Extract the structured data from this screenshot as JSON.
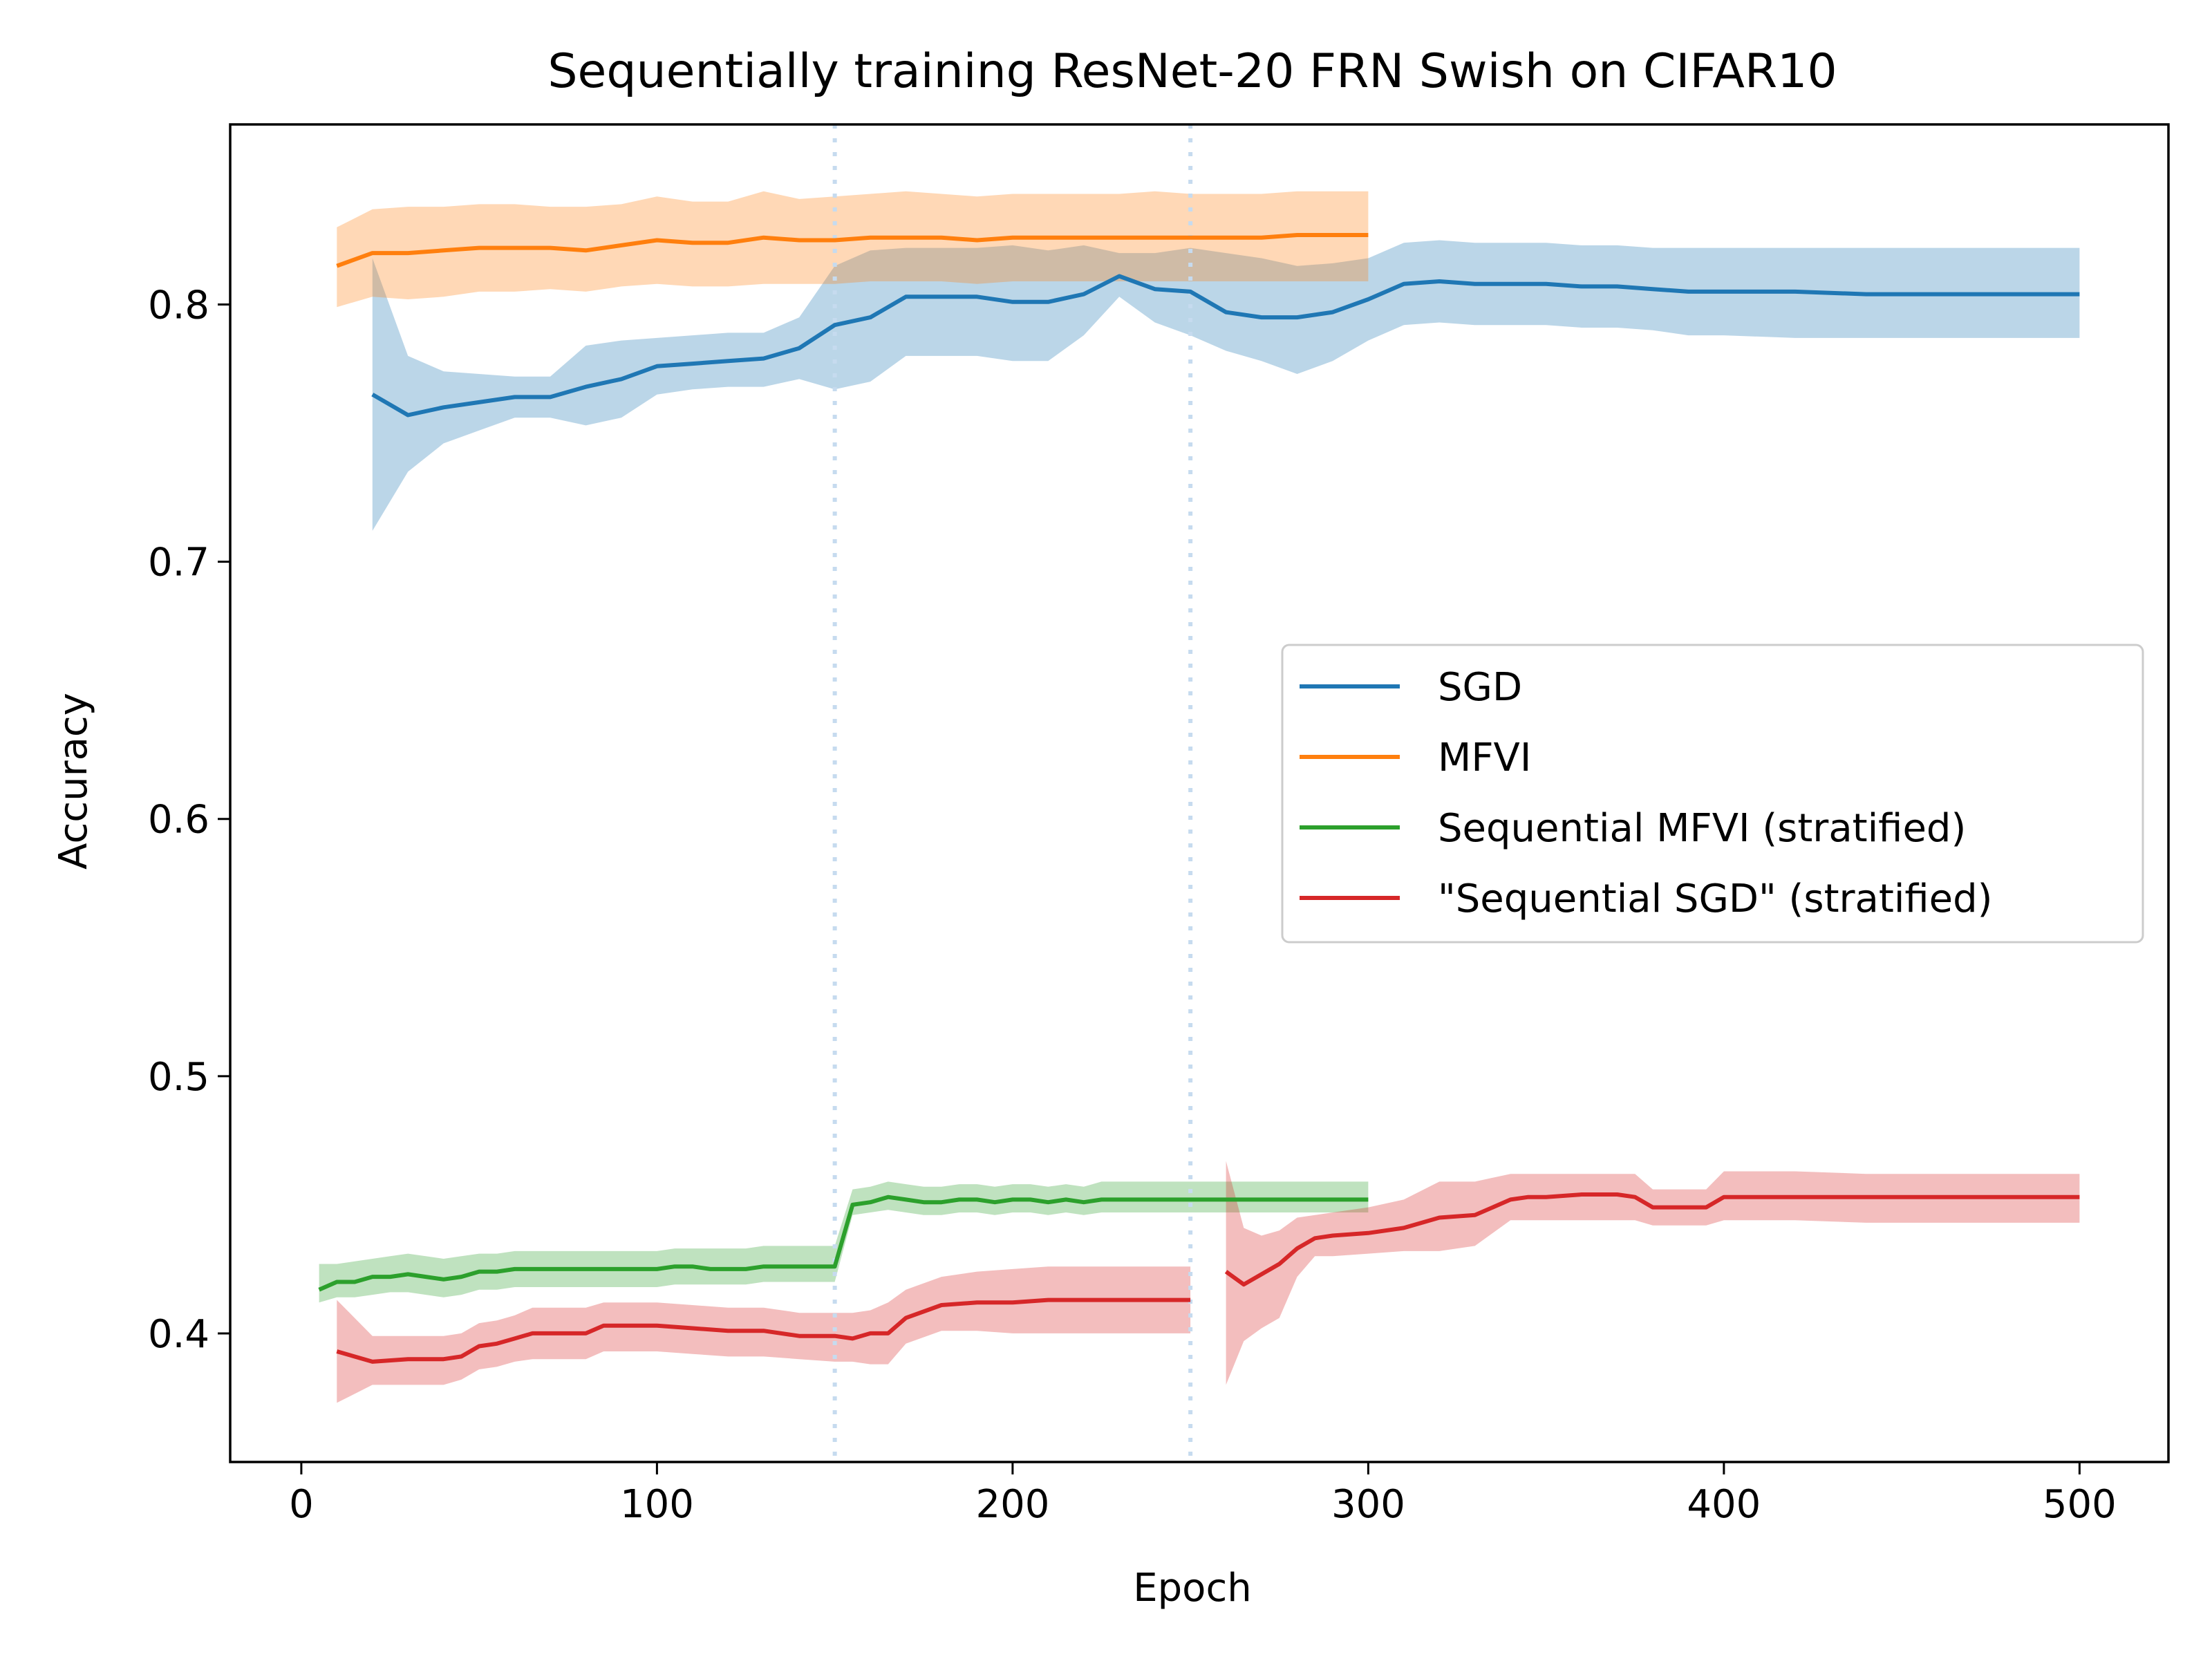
{
  "chart_data": {
    "type": "line",
    "title": "Sequentially training ResNet-20 FRN Swish on CIFAR10",
    "xlabel": "Epoch",
    "ylabel": "Accuracy",
    "xlim": [
      -20,
      525
    ],
    "ylim": [
      0.35,
      0.87
    ],
    "xticks": [
      0,
      100,
      200,
      300,
      400,
      500
    ],
    "xtick_labels": [
      "0",
      "100",
      "200",
      "300",
      "400",
      "500"
    ],
    "yticks": [
      0.4,
      0.5,
      0.6,
      0.7,
      0.8
    ],
    "ytick_labels": [
      "0.4",
      "0.5",
      "0.6",
      "0.7",
      "0.8"
    ],
    "grid": false,
    "legend_position": "center-right",
    "vlines": [
      150,
      250
    ],
    "vline_color": "#c6dbef",
    "series": [
      {
        "name": "SGD",
        "color": "#1f77b4",
        "segments": [
          {
            "x": [
              20,
              30,
              40,
              50,
              60,
              70,
              80,
              90,
              100,
              110,
              120,
              130,
              140,
              150,
              160,
              170,
              180,
              190,
              200,
              210,
              220,
              230,
              240,
              250,
              260,
              270,
              280,
              290,
              300,
              310,
              320,
              330,
              340,
              350,
              360,
              370,
              380,
              390,
              400,
              420,
              440,
              460,
              480,
              500
            ],
            "y": [
              0.765,
              0.757,
              0.76,
              0.762,
              0.764,
              0.764,
              0.768,
              0.771,
              0.776,
              0.777,
              0.778,
              0.779,
              0.783,
              0.792,
              0.795,
              0.803,
              0.803,
              0.803,
              0.801,
              0.801,
              0.804,
              0.811,
              0.806,
              0.805,
              0.797,
              0.795,
              0.795,
              0.797,
              0.802,
              0.808,
              0.809,
              0.808,
              0.808,
              0.808,
              0.807,
              0.807,
              0.806,
              0.805,
              0.805,
              0.805,
              0.804,
              0.804,
              0.804,
              0.804
            ],
            "upper": [
              0.818,
              0.78,
              0.774,
              0.773,
              0.772,
              0.772,
              0.784,
              0.786,
              0.787,
              0.788,
              0.789,
              0.789,
              0.795,
              0.815,
              0.821,
              0.822,
              0.822,
              0.822,
              0.823,
              0.821,
              0.823,
              0.82,
              0.82,
              0.822,
              0.82,
              0.818,
              0.815,
              0.816,
              0.818,
              0.824,
              0.825,
              0.824,
              0.824,
              0.824,
              0.823,
              0.823,
              0.822,
              0.822,
              0.822,
              0.822,
              0.822,
              0.822,
              0.822,
              0.822
            ],
            "lower": [
              0.712,
              0.735,
              0.746,
              0.751,
              0.756,
              0.756,
              0.753,
              0.756,
              0.765,
              0.767,
              0.768,
              0.768,
              0.771,
              0.767,
              0.77,
              0.78,
              0.78,
              0.78,
              0.778,
              0.778,
              0.788,
              0.803,
              0.793,
              0.788,
              0.782,
              0.778,
              0.773,
              0.778,
              0.786,
              0.792,
              0.793,
              0.792,
              0.792,
              0.792,
              0.791,
              0.791,
              0.79,
              0.788,
              0.788,
              0.787,
              0.787,
              0.787,
              0.787,
              0.787
            ]
          }
        ]
      },
      {
        "name": "MFVI",
        "color": "#ff7f0e",
        "segments": [
          {
            "x": [
              10,
              20,
              30,
              40,
              50,
              60,
              70,
              80,
              90,
              100,
              110,
              120,
              130,
              140,
              150,
              160,
              170,
              180,
              190,
              200,
              210,
              220,
              230,
              240,
              250,
              260,
              270,
              280,
              290,
              300
            ],
            "y": [
              0.815,
              0.82,
              0.82,
              0.821,
              0.822,
              0.822,
              0.822,
              0.821,
              0.823,
              0.825,
              0.824,
              0.824,
              0.826,
              0.825,
              0.825,
              0.826,
              0.826,
              0.826,
              0.825,
              0.826,
              0.826,
              0.826,
              0.826,
              0.826,
              0.826,
              0.826,
              0.826,
              0.827,
              0.827,
              0.827
            ],
            "upper": [
              0.83,
              0.837,
              0.838,
              0.838,
              0.839,
              0.839,
              0.838,
              0.838,
              0.839,
              0.842,
              0.84,
              0.84,
              0.844,
              0.841,
              0.842,
              0.843,
              0.844,
              0.843,
              0.842,
              0.843,
              0.843,
              0.843,
              0.843,
              0.844,
              0.843,
              0.843,
              0.843,
              0.844,
              0.844,
              0.844
            ],
            "lower": [
              0.799,
              0.803,
              0.802,
              0.803,
              0.805,
              0.805,
              0.806,
              0.805,
              0.807,
              0.808,
              0.807,
              0.807,
              0.808,
              0.808,
              0.808,
              0.809,
              0.809,
              0.809,
              0.808,
              0.809,
              0.809,
              0.809,
              0.809,
              0.809,
              0.809,
              0.809,
              0.809,
              0.809,
              0.809,
              0.809
            ]
          }
        ]
      },
      {
        "name": "Sequential MFVI (stratified)",
        "color": "#2ca02c",
        "segments": [
          {
            "x": [
              5,
              10,
              15,
              20,
              25,
              30,
              35,
              40,
              45,
              50,
              55,
              60,
              65,
              70,
              75,
              80,
              85,
              90,
              95,
              100,
              105,
              110,
              115,
              120,
              125,
              130,
              135,
              140,
              145,
              150,
              155,
              160,
              165,
              170,
              175,
              180,
              185,
              190,
              195,
              200,
              205,
              210,
              215,
              220,
              225,
              230,
              235,
              240,
              245,
              250,
              255,
              260,
              265,
              270,
              275,
              280,
              285,
              290,
              295,
              300
            ],
            "y": [
              0.417,
              0.42,
              0.42,
              0.422,
              0.422,
              0.423,
              0.422,
              0.421,
              0.422,
              0.424,
              0.424,
              0.425,
              0.425,
              0.425,
              0.425,
              0.425,
              0.425,
              0.425,
              0.425,
              0.425,
              0.426,
              0.426,
              0.425,
              0.425,
              0.425,
              0.426,
              0.426,
              0.426,
              0.426,
              0.426,
              0.45,
              0.451,
              0.453,
              0.452,
              0.451,
              0.451,
              0.452,
              0.452,
              0.451,
              0.452,
              0.452,
              0.451,
              0.452,
              0.451,
              0.452,
              0.452,
              0.452,
              0.452,
              0.452,
              0.452,
              0.452,
              0.452,
              0.452,
              0.452,
              0.452,
              0.452,
              0.452,
              0.452,
              0.452,
              0.452
            ],
            "upper": [
              0.427,
              0.427,
              0.428,
              0.429,
              0.43,
              0.431,
              0.43,
              0.429,
              0.43,
              0.431,
              0.431,
              0.432,
              0.432,
              0.432,
              0.432,
              0.432,
              0.432,
              0.432,
              0.432,
              0.432,
              0.433,
              0.433,
              0.433,
              0.433,
              0.433,
              0.434,
              0.434,
              0.434,
              0.434,
              0.434,
              0.456,
              0.457,
              0.459,
              0.458,
              0.457,
              0.457,
              0.458,
              0.458,
              0.457,
              0.458,
              0.458,
              0.457,
              0.458,
              0.457,
              0.459,
              0.459,
              0.459,
              0.459,
              0.459,
              0.459,
              0.459,
              0.459,
              0.459,
              0.459,
              0.459,
              0.459,
              0.459,
              0.459,
              0.459,
              0.459
            ],
            "lower": [
              0.412,
              0.414,
              0.414,
              0.415,
              0.416,
              0.416,
              0.415,
              0.414,
              0.415,
              0.417,
              0.417,
              0.418,
              0.418,
              0.418,
              0.418,
              0.418,
              0.418,
              0.418,
              0.418,
              0.418,
              0.419,
              0.419,
              0.419,
              0.419,
              0.419,
              0.42,
              0.42,
              0.42,
              0.42,
              0.42,
              0.446,
              0.447,
              0.448,
              0.447,
              0.446,
              0.446,
              0.447,
              0.447,
              0.446,
              0.447,
              0.447,
              0.446,
              0.447,
              0.446,
              0.447,
              0.447,
              0.447,
              0.447,
              0.447,
              0.447,
              0.447,
              0.447,
              0.447,
              0.447,
              0.447,
              0.447,
              0.447,
              0.447,
              0.447,
              0.447
            ]
          }
        ]
      },
      {
        "name": "\"Sequential SGD\" (stratified)",
        "color": "#d62728",
        "segments": [
          {
            "x": [
              10,
              20,
              30,
              40,
              45,
              50,
              55,
              60,
              65,
              70,
              75,
              80,
              85,
              90,
              95,
              100,
              110,
              120,
              130,
              140,
              150,
              155,
              160,
              165,
              170,
              180,
              190,
              200,
              210,
              220,
              230,
              240,
              250
            ],
            "y": [
              0.393,
              0.389,
              0.39,
              0.39,
              0.391,
              0.395,
              0.396,
              0.398,
              0.4,
              0.4,
              0.4,
              0.4,
              0.403,
              0.403,
              0.403,
              0.403,
              0.402,
              0.401,
              0.401,
              0.399,
              0.399,
              0.398,
              0.4,
              0.4,
              0.406,
              0.411,
              0.412,
              0.412,
              0.413,
              0.413,
              0.413,
              0.413,
              0.413
            ],
            "upper": [
              0.413,
              0.399,
              0.399,
              0.399,
              0.4,
              0.404,
              0.405,
              0.407,
              0.41,
              0.41,
              0.41,
              0.41,
              0.412,
              0.412,
              0.412,
              0.412,
              0.411,
              0.41,
              0.41,
              0.408,
              0.408,
              0.408,
              0.409,
              0.412,
              0.417,
              0.422,
              0.424,
              0.425,
              0.426,
              0.426,
              0.426,
              0.426,
              0.426
            ],
            "lower": [
              0.373,
              0.38,
              0.38,
              0.38,
              0.382,
              0.386,
              0.387,
              0.389,
              0.39,
              0.39,
              0.39,
              0.39,
              0.393,
              0.393,
              0.393,
              0.393,
              0.392,
              0.391,
              0.391,
              0.39,
              0.389,
              0.389,
              0.388,
              0.388,
              0.396,
              0.401,
              0.401,
              0.4,
              0.4,
              0.4,
              0.4,
              0.4,
              0.4
            ]
          },
          {
            "x": [
              260,
              265,
              270,
              275,
              280,
              285,
              290,
              300,
              310,
              320,
              330,
              340,
              345,
              350,
              360,
              370,
              375,
              380,
              390,
              395,
              400,
              420,
              440,
              460,
              480,
              500
            ],
            "y": [
              0.424,
              0.419,
              0.423,
              0.427,
              0.433,
              0.437,
              0.438,
              0.439,
              0.441,
              0.445,
              0.446,
              0.452,
              0.453,
              0.453,
              0.454,
              0.454,
              0.453,
              0.449,
              0.449,
              0.449,
              0.453,
              0.453,
              0.453,
              0.453,
              0.453,
              0.453
            ],
            "upper": [
              0.467,
              0.441,
              0.438,
              0.44,
              0.445,
              0.446,
              0.447,
              0.449,
              0.452,
              0.459,
              0.459,
              0.462,
              0.462,
              0.462,
              0.462,
              0.462,
              0.462,
              0.456,
              0.456,
              0.456,
              0.463,
              0.463,
              0.462,
              0.462,
              0.462,
              0.462
            ],
            "lower": [
              0.38,
              0.397,
              0.402,
              0.406,
              0.422,
              0.43,
              0.43,
              0.431,
              0.432,
              0.432,
              0.434,
              0.444,
              0.444,
              0.444,
              0.444,
              0.444,
              0.444,
              0.442,
              0.442,
              0.442,
              0.444,
              0.444,
              0.443,
              0.443,
              0.443,
              0.443
            ]
          }
        ]
      }
    ]
  }
}
